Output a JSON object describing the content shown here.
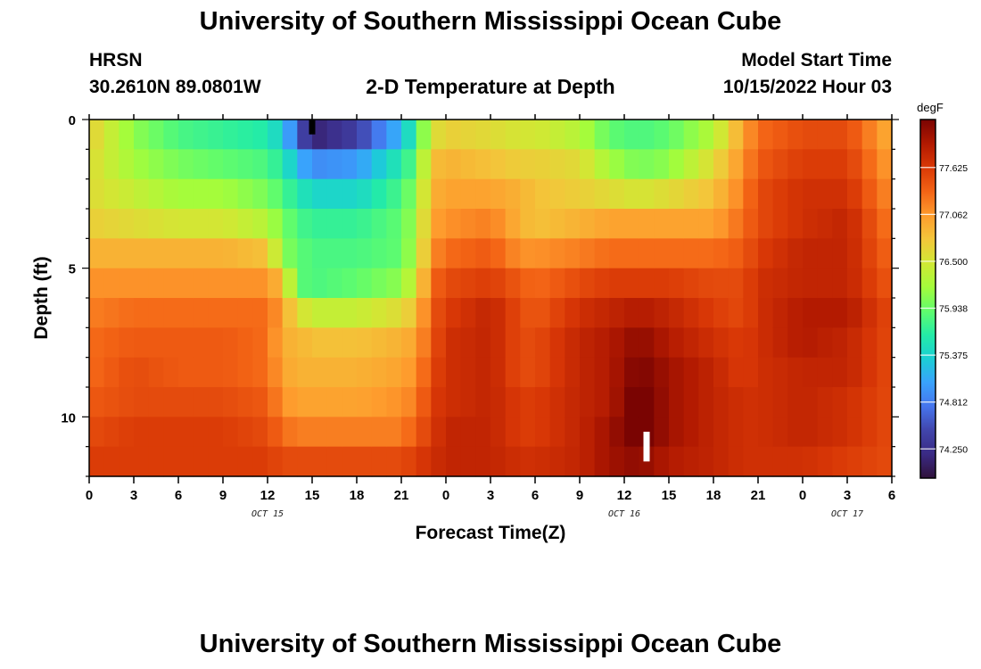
{
  "header": {
    "title": "University of Southern Mississippi Ocean Cube",
    "station": "HRSN",
    "coords": "30.2610N  89.0801W",
    "plot_title": "2-D Temperature at Depth",
    "model_start_label": "Model Start Time",
    "model_start_value": "10/15/2022 Hour 03"
  },
  "footer": {
    "title": "University of Southern Mississippi Ocean Cube"
  },
  "colors": {
    "palette": [
      "#30123b",
      "#3a2a84",
      "#4145ab",
      "#4675ed",
      "#39a2fc",
      "#1bcfd4",
      "#24eca6",
      "#61fc6c",
      "#a4fc3b",
      "#d1e834",
      "#f3c63a",
      "#fe9b2d",
      "#f36315",
      "#d93806",
      "#b11901",
      "#7a0402"
    ]
  },
  "chart_data": {
    "type": "heatmap",
    "title": "2-D Temperature at Depth",
    "xlabel": "Forecast Time(Z)",
    "ylabel": "Depth (ft)",
    "colorbar_label": "degF",
    "colorbar_ticks": [
      "77.625",
      "77.062",
      "76.500",
      "75.938",
      "75.375",
      "74.812",
      "74.250"
    ],
    "colorbar_range": [
      73.9,
      78.2
    ],
    "x_tick_labels": [
      "0",
      "3",
      "6",
      "9",
      "12",
      "15",
      "18",
      "21",
      "0",
      "3",
      "6",
      "9",
      "12",
      "15",
      "18",
      "21",
      "0",
      "3",
      "6"
    ],
    "x_range_hours": [
      0,
      54
    ],
    "date_labels": [
      {
        "text": "OCT 15",
        "hour": 12
      },
      {
        "text": "OCT 16",
        "hour": 36
      },
      {
        "text": "OCT 17",
        "hour": 51
      }
    ],
    "y_tick_labels": [
      "0",
      "5",
      "10"
    ],
    "y_range_ft": [
      0,
      12
    ],
    "depth_bins_ft": [
      0,
      1,
      2,
      3,
      4,
      5,
      6,
      7,
      8,
      9,
      10,
      11,
      12
    ],
    "markers": [
      {
        "hour": 15,
        "depth_ft": [
          0,
          0.5
        ],
        "color": "#000000"
      },
      {
        "hour": 37.5,
        "depth_ft": [
          10.5,
          11.5
        ],
        "color": "#ffffff"
      }
    ],
    "profiles": [
      {
        "hour": 0,
        "values": [
          76.7,
          76.6,
          76.6,
          76.7,
          76.9,
          77.1,
          77.2,
          77.3,
          77.3,
          77.4,
          77.5,
          77.6
        ]
      },
      {
        "hour": 3,
        "values": [
          76.1,
          76.2,
          76.4,
          76.6,
          76.9,
          77.1,
          77.3,
          77.4,
          77.5,
          77.5,
          77.6,
          77.6
        ]
      },
      {
        "hour": 6,
        "values": [
          75.8,
          76.0,
          76.2,
          76.5,
          76.9,
          77.1,
          77.3,
          77.4,
          77.4,
          77.5,
          77.6,
          77.6
        ]
      },
      {
        "hour": 9,
        "values": [
          75.7,
          75.9,
          76.2,
          76.5,
          76.9,
          77.1,
          77.3,
          77.4,
          77.4,
          77.5,
          77.6,
          77.6
        ]
      },
      {
        "hour": 12,
        "values": [
          75.6,
          75.8,
          76.0,
          76.3,
          76.8,
          77.1,
          77.3,
          77.3,
          77.3,
          77.4,
          77.5,
          77.6
        ]
      },
      {
        "hour": 13,
        "values": [
          75.3,
          75.6,
          75.8,
          76.0,
          76.1,
          76.8,
          77.0,
          76.9,
          77.0,
          77.1,
          77.3,
          77.5
        ]
      },
      {
        "hour": 14,
        "values": [
          74.7,
          75.2,
          75.6,
          75.8,
          75.9,
          75.9,
          76.6,
          76.9,
          76.9,
          77.0,
          77.2,
          77.5
        ]
      },
      {
        "hour": 15,
        "values": [
          74.1,
          74.9,
          75.4,
          75.7,
          75.8,
          75.8,
          76.4,
          76.8,
          76.9,
          77.0,
          77.2,
          77.5
        ]
      },
      {
        "hour": 18,
        "values": [
          74.4,
          75.0,
          75.4,
          75.7,
          75.8,
          75.9,
          76.4,
          76.8,
          76.9,
          77.0,
          77.2,
          77.5
        ]
      },
      {
        "hour": 21,
        "values": [
          75.2,
          75.6,
          75.8,
          75.9,
          75.9,
          76.1,
          76.6,
          76.9,
          77.0,
          77.1,
          77.2,
          77.5
        ]
      },
      {
        "hour": 22,
        "values": [
          75.7,
          75.9,
          76.1,
          76.2,
          76.3,
          76.5,
          76.8,
          77.0,
          77.1,
          77.2,
          77.4,
          77.6
        ]
      },
      {
        "hour": 23,
        "values": [
          76.5,
          76.8,
          76.9,
          77.0,
          77.1,
          77.3,
          77.4,
          77.4,
          77.5,
          77.6,
          77.6,
          77.7
        ]
      },
      {
        "hour": 24,
        "values": [
          76.7,
          76.9,
          77.0,
          77.1,
          77.3,
          77.5,
          77.6,
          77.7,
          77.7,
          77.7,
          77.8,
          77.8
        ]
      },
      {
        "hour": 27,
        "values": [
          76.6,
          76.8,
          77.0,
          77.2,
          77.4,
          77.6,
          77.8,
          77.8,
          77.8,
          77.8,
          77.8,
          77.8
        ]
      },
      {
        "hour": 29,
        "values": [
          76.5,
          76.7,
          76.9,
          76.9,
          77.1,
          77.4,
          77.5,
          77.5,
          77.5,
          77.6,
          77.6,
          77.7
        ]
      },
      {
        "hour": 30,
        "values": [
          76.5,
          76.7,
          76.8,
          76.8,
          77.1,
          77.3,
          77.4,
          77.5,
          77.5,
          77.6,
          77.6,
          77.7
        ]
      },
      {
        "hour": 33,
        "values": [
          76.3,
          76.6,
          76.7,
          76.9,
          77.2,
          77.5,
          77.7,
          77.8,
          77.8,
          77.8,
          77.8,
          77.8
        ]
      },
      {
        "hour": 35,
        "values": [
          75.9,
          76.2,
          76.6,
          77.0,
          77.3,
          77.6,
          77.8,
          77.9,
          77.9,
          77.9,
          78.0,
          78.0
        ]
      },
      {
        "hour": 37,
        "values": [
          75.8,
          76.0,
          76.5,
          77.0,
          77.3,
          77.6,
          77.9,
          78.1,
          78.2,
          78.3,
          78.3,
          78.1
        ]
      },
      {
        "hour": 39,
        "values": [
          75.9,
          76.1,
          76.6,
          77.0,
          77.3,
          77.6,
          77.8,
          77.9,
          78.0,
          78.0,
          78.0,
          77.9
        ]
      },
      {
        "hour": 42,
        "values": [
          76.3,
          76.6,
          76.8,
          77.0,
          77.3,
          77.5,
          77.6,
          77.7,
          77.8,
          77.8,
          77.8,
          77.8
        ]
      },
      {
        "hour": 44,
        "values": [
          77.0,
          77.1,
          77.2,
          77.3,
          77.4,
          77.5,
          77.5,
          77.6,
          77.6,
          77.7,
          77.7,
          77.7
        ]
      },
      {
        "hour": 45,
        "values": [
          77.3,
          77.4,
          77.5,
          77.5,
          77.6,
          77.7,
          77.7,
          77.7,
          77.7,
          77.7,
          77.7,
          77.7
        ]
      },
      {
        "hour": 48,
        "values": [
          77.5,
          77.6,
          77.7,
          77.7,
          77.8,
          77.8,
          77.9,
          77.9,
          77.8,
          77.8,
          77.8,
          77.7
        ]
      },
      {
        "hour": 51,
        "values": [
          77.5,
          77.6,
          77.7,
          77.8,
          77.8,
          77.8,
          77.9,
          77.8,
          77.8,
          77.7,
          77.7,
          77.6
        ]
      },
      {
        "hour": 54,
        "values": [
          76.9,
          77.0,
          77.1,
          77.2,
          77.3,
          77.4,
          77.5,
          77.5,
          77.5,
          77.5,
          77.5,
          77.5
        ]
      }
    ]
  }
}
